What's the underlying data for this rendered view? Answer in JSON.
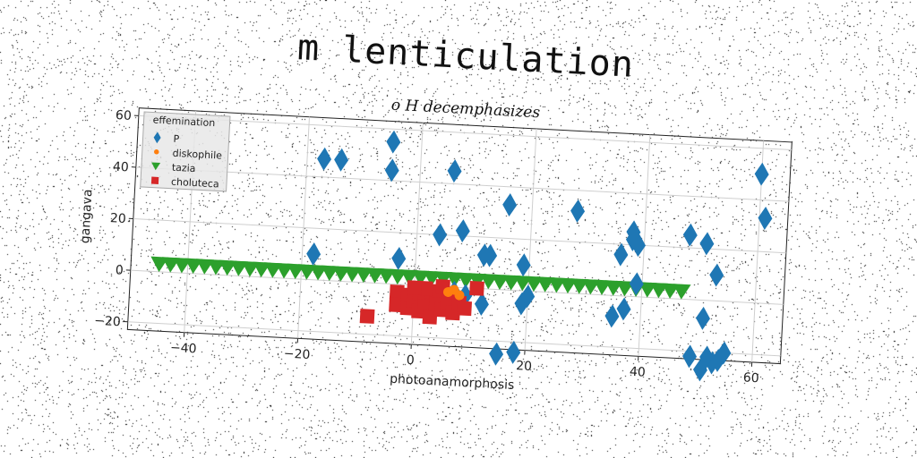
{
  "chart_data": {
    "type": "scatter",
    "title": "m lenticulation",
    "subtitle": "o H decemphasizes",
    "xlabel": "photoanamorphosis",
    "ylabel": "gangava",
    "xlim": [
      -50,
      65
    ],
    "ylim": [
      -23,
      63
    ],
    "xticks": [
      -40,
      -20,
      0,
      20,
      40,
      60
    ],
    "yticks": [
      -20,
      0,
      20,
      40,
      60
    ],
    "grid": true,
    "legend": {
      "title": "effemination",
      "placement": "top-left"
    },
    "series": [
      {
        "name": "P",
        "marker": "diamond",
        "color": "#1f77b4",
        "points": [
          [
            -17,
            47
          ],
          [
            -14,
            47
          ],
          [
            -5,
            55
          ],
          [
            -5,
            44
          ],
          [
            6,
            45
          ],
          [
            -18,
            10
          ],
          [
            -3,
            10
          ],
          [
            4,
            20
          ],
          [
            8,
            22
          ],
          [
            12,
            13
          ],
          [
            13,
            13
          ],
          [
            16,
            33
          ],
          [
            19,
            10
          ],
          [
            19,
            -5
          ],
          [
            20,
            -2
          ],
          [
            28,
            32
          ],
          [
            35,
            -8
          ],
          [
            36,
            16
          ],
          [
            37,
            -5
          ],
          [
            38,
            25
          ],
          [
            38,
            22
          ],
          [
            39,
            20
          ],
          [
            39,
            5
          ],
          [
            48,
            25
          ],
          [
            51,
            22
          ],
          [
            51,
            -7
          ],
          [
            53,
            10
          ],
          [
            49,
            -22
          ],
          [
            51,
            -27
          ],
          [
            52,
            -22
          ],
          [
            53,
            -24
          ],
          [
            54,
            -23
          ],
          [
            55,
            -20
          ],
          [
            60,
            50
          ],
          [
            61,
            33
          ],
          [
            15,
            -25
          ],
          [
            18,
            -24
          ],
          [
            12,
            -6
          ],
          [
            9,
            -3
          ],
          [
            7,
            -2
          ]
        ]
      },
      {
        "name": "diskophile",
        "marker": "circle",
        "color": "#ff7f0e",
        "points": [
          [
            6,
            -2
          ],
          [
            7,
            -1
          ],
          [
            8,
            -3
          ]
        ]
      },
      {
        "name": "tazia",
        "marker": "triangle-down",
        "color": "#2ca02c",
        "points": [
          [
            -45,
            3
          ],
          [
            -43,
            3
          ],
          [
            -41,
            3
          ],
          [
            -39,
            3
          ],
          [
            -37,
            3
          ],
          [
            -35,
            3
          ],
          [
            -33,
            3
          ],
          [
            -31,
            3
          ],
          [
            -29,
            3
          ],
          [
            -27,
            3
          ],
          [
            -25,
            3
          ],
          [
            -23,
            3
          ],
          [
            -21,
            3
          ],
          [
            -19,
            3
          ],
          [
            -17,
            3
          ],
          [
            -15,
            3
          ],
          [
            -13,
            3
          ],
          [
            -11,
            3
          ],
          [
            -9,
            3
          ],
          [
            -7,
            3
          ],
          [
            -5,
            3
          ],
          [
            -3,
            3
          ],
          [
            -1,
            3
          ],
          [
            1,
            3
          ],
          [
            3,
            3
          ],
          [
            5,
            3
          ],
          [
            7,
            3
          ],
          [
            9,
            3
          ],
          [
            11,
            3
          ],
          [
            13,
            3
          ],
          [
            15,
            3
          ],
          [
            17,
            3
          ],
          [
            19,
            3
          ],
          [
            21,
            3
          ],
          [
            23,
            3
          ],
          [
            25,
            3
          ],
          [
            27,
            3
          ],
          [
            29,
            3
          ],
          [
            31,
            3
          ],
          [
            33,
            3
          ],
          [
            35,
            3
          ],
          [
            37,
            3
          ],
          [
            39,
            3
          ],
          [
            41,
            3
          ],
          [
            43,
            3
          ],
          [
            45,
            3
          ],
          [
            47,
            3
          ]
        ]
      },
      {
        "name": "choluteca",
        "marker": "square",
        "color": "#d62728",
        "points": [
          [
            -8,
            -13
          ],
          [
            -3,
            -3
          ],
          [
            -3,
            -8
          ],
          [
            -1,
            -4
          ],
          [
            -1,
            -9
          ],
          [
            0,
            -6
          ],
          [
            1,
            -3
          ],
          [
            1,
            -10
          ],
          [
            2,
            -5
          ],
          [
            2,
            -8
          ],
          [
            3,
            -2
          ],
          [
            3,
            -12
          ],
          [
            4,
            -4
          ],
          [
            4,
            -7
          ],
          [
            5,
            -9
          ],
          [
            6,
            -3
          ],
          [
            6,
            -6
          ],
          [
            7,
            -10
          ],
          [
            8,
            -6
          ],
          [
            9,
            -8
          ],
          [
            11,
            0
          ],
          [
            2,
            -1
          ],
          [
            0,
            -1
          ],
          [
            5,
            0
          ]
        ]
      }
    ]
  }
}
